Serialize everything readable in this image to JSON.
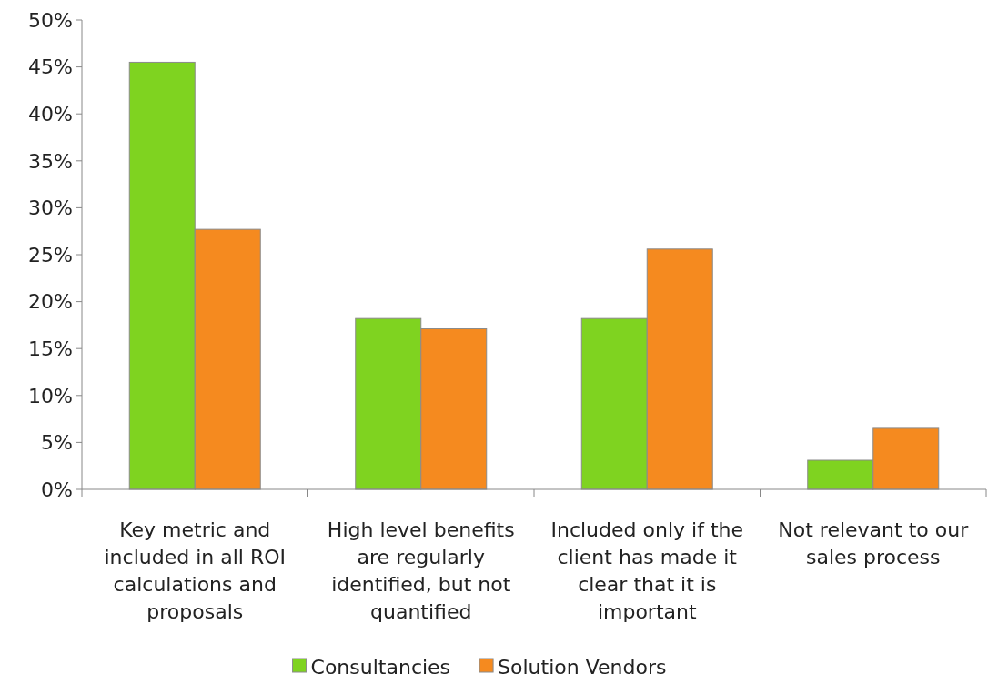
{
  "chart_data": {
    "type": "bar",
    "categories": [
      "Key metric and included in all ROI calculations and proposals",
      "High level benefits are regularly identified, but not quantified",
      "Included only if the client has made it clear that it is important",
      "Not relevant to our sales process"
    ],
    "series": [
      {
        "name": "Consultancies",
        "color": "#7fd320",
        "values": [
          45.5,
          18.2,
          18.2,
          3.1
        ]
      },
      {
        "name": "Solution Vendors",
        "color": "#f58a1f",
        "values": [
          27.7,
          17.1,
          25.6,
          6.5
        ]
      }
    ],
    "ylim": [
      0,
      50
    ],
    "yticks": [
      {
        "value": 0,
        "label": "0%"
      },
      {
        "value": 5,
        "label": "5%"
      },
      {
        "value": 10,
        "label": "10%"
      },
      {
        "value": 15,
        "label": "15%"
      },
      {
        "value": 20,
        "label": "20%"
      },
      {
        "value": 25,
        "label": "25%"
      },
      {
        "value": 30,
        "label": "30%"
      },
      {
        "value": 35,
        "label": "35%"
      },
      {
        "value": 40,
        "label": "40%"
      },
      {
        "value": 45,
        "label": "45%"
      },
      {
        "value": 50,
        "label": "50%"
      }
    ],
    "grid": false,
    "legend": "bottom"
  }
}
